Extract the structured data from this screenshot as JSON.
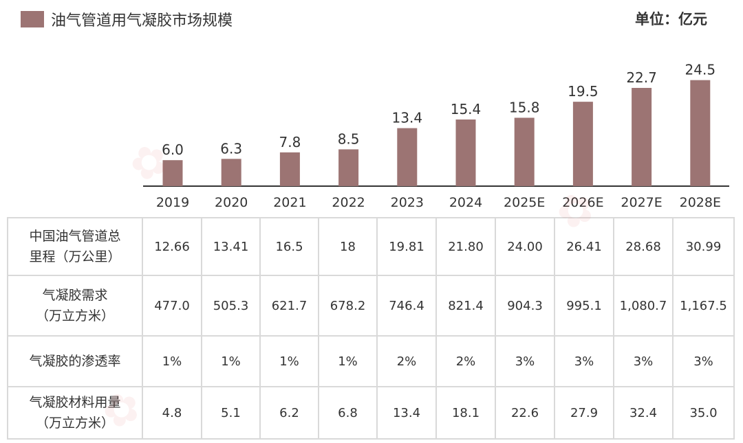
{
  "legend": {
    "label": "油气管道用气凝胶市场规模",
    "color": "#9c7473"
  },
  "unit_label": "单位：亿元",
  "chart_data": {
    "type": "bar",
    "categories": [
      "2019",
      "2020",
      "2021",
      "2022",
      "2023",
      "2024",
      "2025E",
      "2026E",
      "2027E",
      "2028E"
    ],
    "series": [
      {
        "name": "油气管道用气凝胶市场规模",
        "values": [
          6.0,
          6.3,
          7.8,
          8.5,
          13.4,
          15.4,
          15.8,
          19.5,
          22.7,
          24.5
        ],
        "labels": [
          "6.0",
          "6.3",
          "7.8",
          "8.5",
          "13.4",
          "15.4",
          "15.8",
          "19.5",
          "22.7",
          "24.5"
        ]
      }
    ],
    "ylim": [
      0,
      26
    ],
    "grid": false,
    "legend_position": "top-left",
    "bar_color": "#9c7473"
  },
  "table": {
    "rows": [
      {
        "header": [
          "中国油气管道总",
          "里程（万公里）"
        ],
        "cells": [
          "12.66",
          "13.41",
          "16.5",
          "18",
          "19.81",
          "21.80",
          "24.00",
          "26.41",
          "28.68",
          "30.99"
        ]
      },
      {
        "header": [
          "气凝胶需求",
          "（万立方米）"
        ],
        "cells": [
          "477.0",
          "505.3",
          "621.7",
          "678.2",
          "746.4",
          "821.4",
          "904.3",
          "995.1",
          "1,080.7",
          "1,167.5"
        ]
      },
      {
        "header": [
          "气凝胶的渗透率"
        ],
        "cells": [
          "1%",
          "1%",
          "1%",
          "1%",
          "2%",
          "2%",
          "3%",
          "3%",
          "3%",
          "3%"
        ]
      },
      {
        "header": [
          "气凝胶材料用量",
          "（万立方米）"
        ],
        "cells": [
          "4.8",
          "5.1",
          "6.2",
          "6.8",
          "13.4",
          "18.1",
          "22.6",
          "27.9",
          "32.4",
          "35.0"
        ]
      }
    ]
  }
}
